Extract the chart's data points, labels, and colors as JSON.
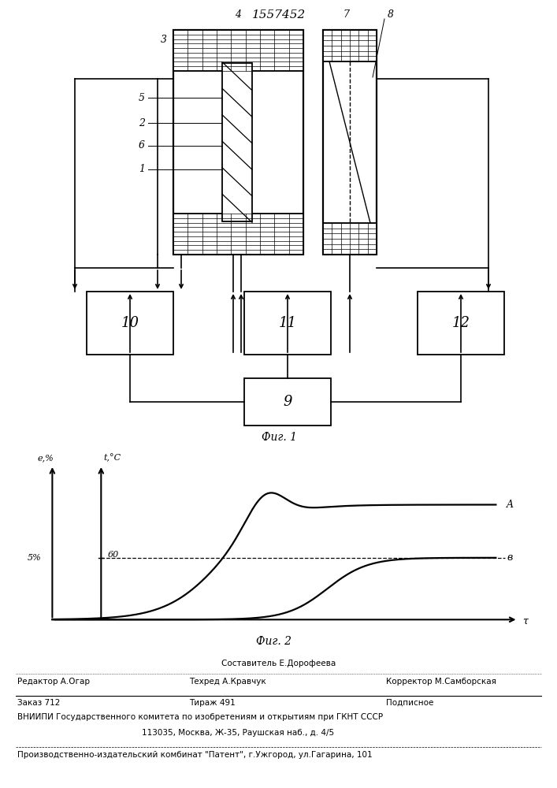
{
  "patent_number": "1557452",
  "fig1_label": "Фиг. 1",
  "fig2_label": "Фиг. 2",
  "background_color": "#ffffff",
  "ylabel_A": "A",
  "ylabel_B": "в",
  "xlabel_tau": "τ",
  "ylabel_e": "е,%",
  "ylabel_t": "t,°C",
  "tick_60": "60",
  "tick_5": "5%",
  "footer_line0": "Составитель Е.Дорофеева",
  "footer_line1a": "Редактор А.Огар",
  "footer_line1b": "Техред А.Кравчук",
  "footer_line1c": "Корректор М.Самборская",
  "footer_line2a": "Заказ 712",
  "footer_line2b": "Тираж 491",
  "footer_line2c": "Подписное",
  "footer_line3": "ВНИИПИ Государственного комитета по изобретениям и открытиям при ГКНТ СССР",
  "footer_line4": "113035, Москва, Ж-35, Раушская наб., д. 4/5",
  "footer_line5": "Производственно-издательский комбинат \"Патент\", г.Ужгород, ул.Гагарина, 101"
}
